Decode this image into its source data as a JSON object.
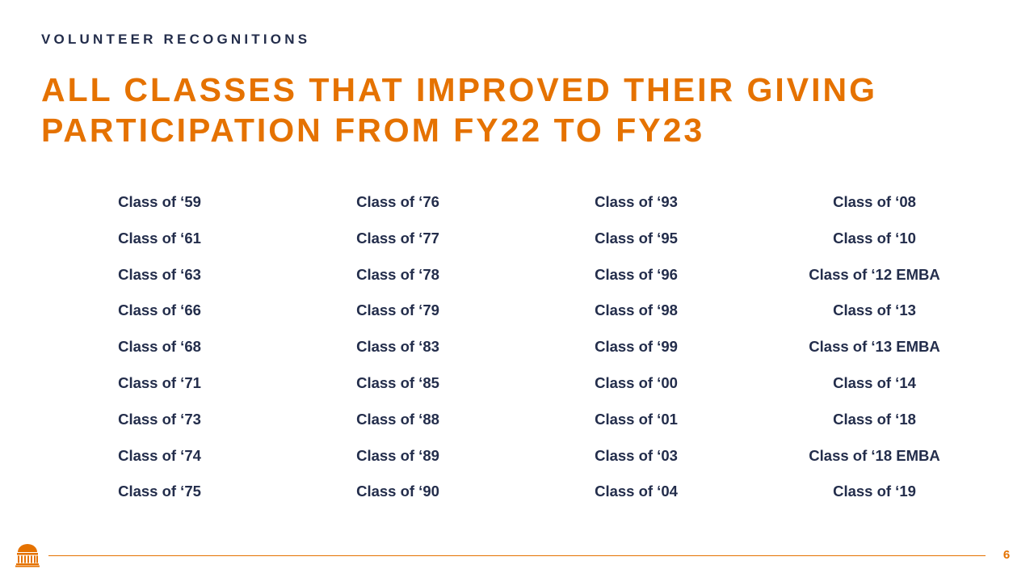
{
  "slide": {
    "eyebrow": "VOLUNTEER RECOGNITIONS",
    "title_lines": [
      "ALL CLASSES THAT IMPROVED THEIR GIVING",
      "PARTICIPATION FROM FY22 TO FY23"
    ],
    "page_number": "6"
  },
  "classes": {
    "columns": [
      [
        "Class of ‘59",
        "Class of ‘61",
        "Class of ‘63",
        "Class of ‘66",
        "Class of ‘68",
        "Class of ‘71",
        "Class of ‘73",
        "Class of ‘74",
        "Class of ‘75"
      ],
      [
        "Class of ‘76",
        "Class of ‘77",
        "Class of ‘78",
        "Class of ‘79",
        "Class of ‘83",
        "Class of ‘85",
        "Class of ‘88",
        "Class of ‘89",
        "Class of ‘90"
      ],
      [
        "Class of ‘93",
        "Class of ‘95",
        "Class of ‘96",
        "Class of ‘98",
        "Class of ‘99",
        "Class of ‘00",
        "Class of ‘01",
        "Class of ‘03",
        "Class of ‘04"
      ],
      [
        "Class of ‘08",
        "Class of ‘10",
        "Class of ‘12 EMBA",
        "Class of ‘13",
        "Class of ‘13 EMBA",
        "Class of ‘14",
        "Class of ‘18",
        "Class of ‘18 EMBA",
        "Class of ‘19"
      ]
    ]
  },
  "footer": {
    "logo_icon": "rotunda-icon"
  },
  "colors": {
    "accent": "#e57200",
    "navy": "#232d4b"
  }
}
